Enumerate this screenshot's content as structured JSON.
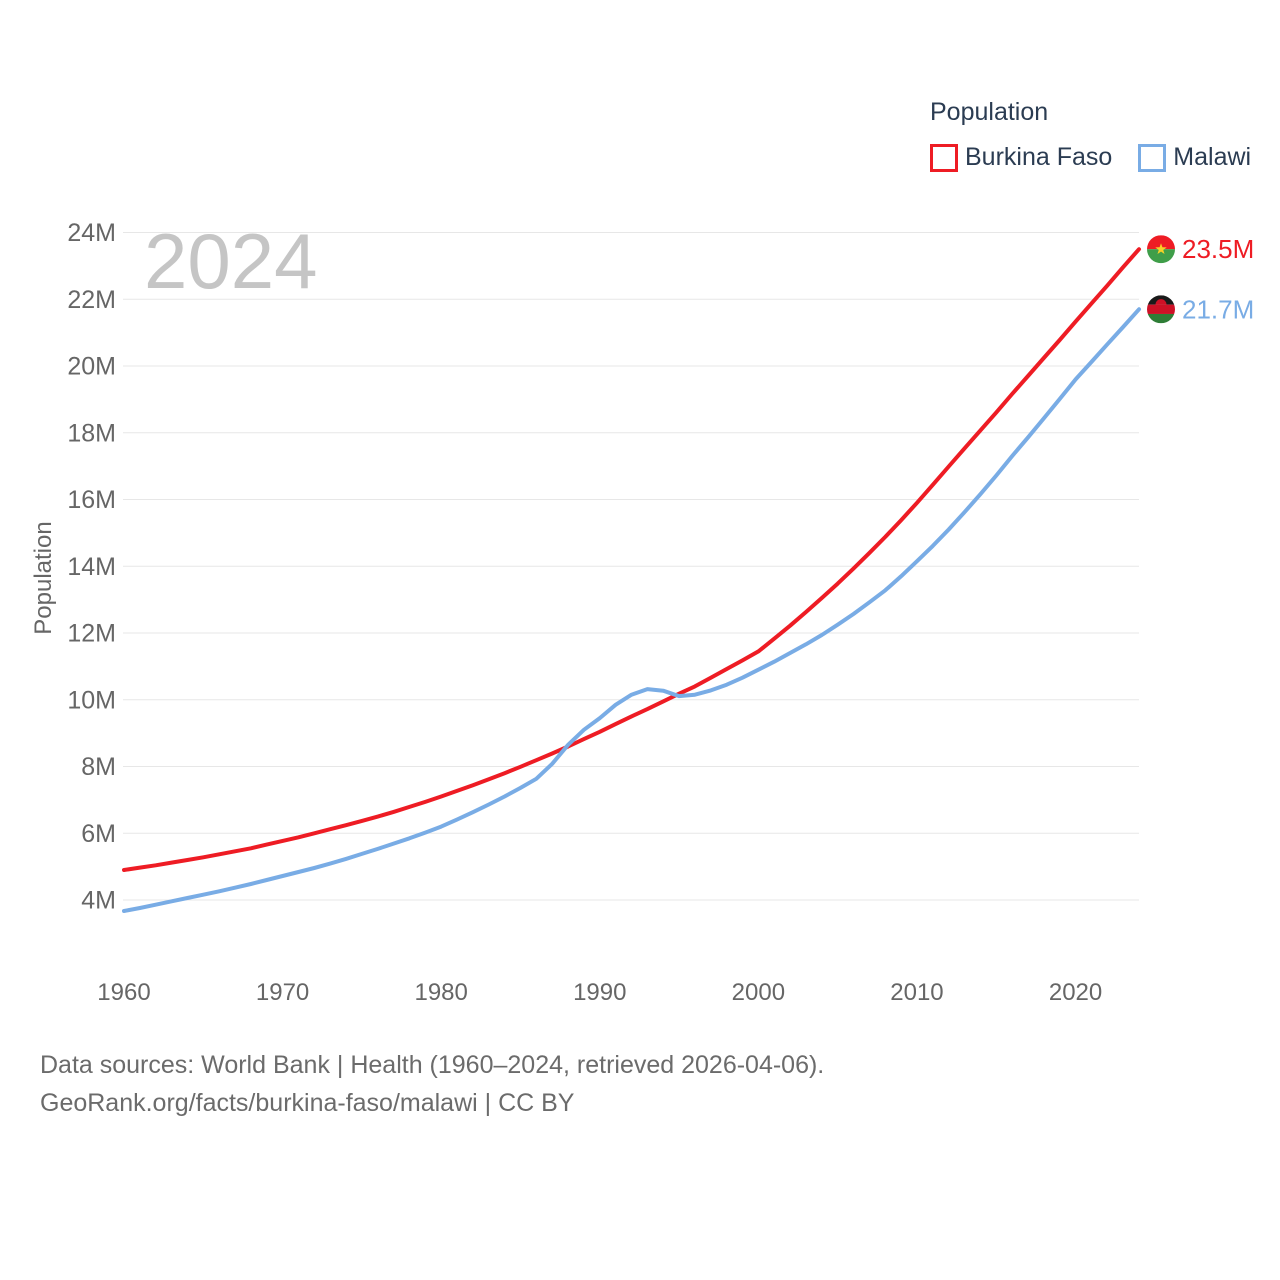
{
  "legend": {
    "title": "Population",
    "items": [
      {
        "label": "Burkina Faso",
        "color": "#ee1c24"
      },
      {
        "label": "Malawi",
        "color": "#79ace5"
      }
    ]
  },
  "watermark": "2024",
  "y_axis_title": "Population",
  "source": {
    "line1": "Data sources: World Bank | Health (1960–2024, retrieved 2026-04-06).",
    "line2": "GeoRank.org/facts/burkina-faso/malawi | CC BY"
  },
  "end_labels": [
    {
      "series": "Burkina Faso",
      "text": "23.5M",
      "color": "#ee1c24"
    },
    {
      "series": "Malawi",
      "text": "21.7M",
      "color": "#79ace5"
    }
  ],
  "flags": {
    "burkina_faso": {
      "top": "#ee1c24",
      "bottom": "#3f9e49",
      "star": "#f8d227"
    },
    "malawi": {
      "top": "#1a1a1a",
      "middle": "#ce1126",
      "bottom": "#2e7d36",
      "sun": "#ce1126"
    }
  },
  "chart_data": {
    "type": "line",
    "title": "",
    "xlabel": "",
    "ylabel": "Population",
    "grid": "horizontal",
    "legend_position": "top-right",
    "xlim": [
      1960,
      2024
    ],
    "ylim": [
      4,
      24
    ],
    "yticks": [
      {
        "value": 4,
        "label": "4M"
      },
      {
        "value": 6,
        "label": "6M"
      },
      {
        "value": 8,
        "label": "8M"
      },
      {
        "value": 10,
        "label": "10M"
      },
      {
        "value": 12,
        "label": "12M"
      },
      {
        "value": 14,
        "label": "14M"
      },
      {
        "value": 16,
        "label": "16M"
      },
      {
        "value": 18,
        "label": "18M"
      },
      {
        "value": 20,
        "label": "20M"
      },
      {
        "value": 22,
        "label": "22M"
      },
      {
        "value": 24,
        "label": "24M"
      }
    ],
    "xticks": [
      {
        "value": 1960,
        "label": "1960"
      },
      {
        "value": 1970,
        "label": "1970"
      },
      {
        "value": 1980,
        "label": "1980"
      },
      {
        "value": 1990,
        "label": "1990"
      },
      {
        "value": 2000,
        "label": "2000"
      },
      {
        "value": 2010,
        "label": "2010"
      },
      {
        "value": 2020,
        "label": "2020"
      }
    ],
    "x": [
      1960,
      1961,
      1962,
      1963,
      1964,
      1965,
      1966,
      1967,
      1968,
      1969,
      1970,
      1971,
      1972,
      1973,
      1974,
      1975,
      1976,
      1977,
      1978,
      1979,
      1980,
      1981,
      1982,
      1983,
      1984,
      1985,
      1986,
      1987,
      1988,
      1989,
      1990,
      1991,
      1992,
      1993,
      1994,
      1995,
      1996,
      1997,
      1998,
      1999,
      2000,
      2001,
      2002,
      2003,
      2004,
      2005,
      2006,
      2007,
      2008,
      2009,
      2010,
      2011,
      2012,
      2013,
      2014,
      2015,
      2016,
      2017,
      2018,
      2019,
      2020,
      2021,
      2022,
      2023,
      2024
    ],
    "series": [
      {
        "name": "Burkina Faso",
        "color": "#ee1c24",
        "unit": "millions",
        "values": [
          4.9,
          4.97,
          5.04,
          5.12,
          5.2,
          5.28,
          5.37,
          5.46,
          5.55,
          5.66,
          5.77,
          5.88,
          6.0,
          6.12,
          6.24,
          6.37,
          6.5,
          6.64,
          6.79,
          6.94,
          7.1,
          7.27,
          7.44,
          7.62,
          7.8,
          7.99,
          8.19,
          8.39,
          8.6,
          8.82,
          9.04,
          9.27,
          9.5,
          9.72,
          9.95,
          10.18,
          10.4,
          10.66,
          10.92,
          11.18,
          11.45,
          11.83,
          12.22,
          12.63,
          13.05,
          13.48,
          13.93,
          14.4,
          14.88,
          15.38,
          15.9,
          16.44,
          16.99,
          17.53,
          18.07,
          18.61,
          19.16,
          19.7,
          20.24,
          20.78,
          21.33,
          21.87,
          22.41,
          22.96,
          23.5
        ]
      },
      {
        "name": "Malawi",
        "color": "#79ace5",
        "unit": "millions",
        "values": [
          3.67,
          3.76,
          3.86,
          3.96,
          4.06,
          4.16,
          4.26,
          4.37,
          4.48,
          4.6,
          4.72,
          4.84,
          4.96,
          5.09,
          5.23,
          5.38,
          5.53,
          5.69,
          5.85,
          6.02,
          6.2,
          6.41,
          6.63,
          6.86,
          7.1,
          7.36,
          7.63,
          8.08,
          8.65,
          9.1,
          9.45,
          9.85,
          10.15,
          10.32,
          10.27,
          10.11,
          10.15,
          10.28,
          10.45,
          10.66,
          10.9,
          11.14,
          11.4,
          11.66,
          11.94,
          12.25,
          12.57,
          12.92,
          13.28,
          13.7,
          14.15,
          14.61,
          15.1,
          15.62,
          16.16,
          16.72,
          17.3,
          17.86,
          18.43,
          19.01,
          19.6,
          20.12,
          20.65,
          21.17,
          21.7
        ]
      }
    ]
  }
}
